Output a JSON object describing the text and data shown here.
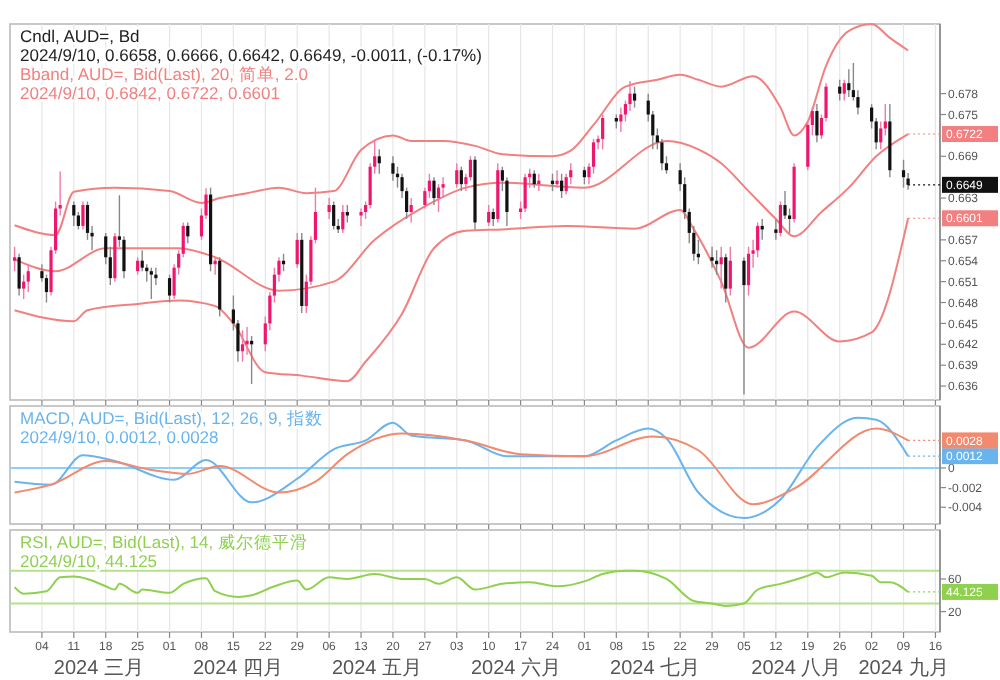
{
  "chart_data": [
    {
      "type": "candlestick",
      "title": "Cndl, AUD=, Bd",
      "subtitle": "2024/9/10, 0.6658, 0.6666, 0.6642, 0.6649, -0.0011, (-0.17%)",
      "annotations": [
        "Bband, AUD=, Bid(Last), 20, 简单, 2.0",
        "2024/9/10, 0.6842, 0.6722, 0.6601"
      ],
      "xlim": [
        "2024-02-26",
        "2024-09-17"
      ],
      "xticks": [
        {
          "value": "2024-03-04",
          "label": null
        },
        {
          "value": "2024-03-11",
          "label": null
        },
        {
          "value": "2024-03-18",
          "label": null
        },
        {
          "value": "2024-03-25",
          "label": null
        },
        {
          "value": "2024-04-01",
          "label": null
        },
        {
          "value": "2024-04-08",
          "label": null
        },
        {
          "value": "2024-04-15",
          "label": null
        },
        {
          "value": "2024-04-22",
          "label": null
        },
        {
          "value": "2024-04-29",
          "label": null
        },
        {
          "value": "2024-05-06",
          "label": null
        },
        {
          "value": "2024-05-13",
          "label": null
        },
        {
          "value": "2024-05-20",
          "label": null
        },
        {
          "value": "2024-05-27",
          "label": null
        },
        {
          "value": "2024-06-03",
          "label": null
        },
        {
          "value": "2024-06-10",
          "label": null
        },
        {
          "value": "2024-06-17",
          "label": null
        },
        {
          "value": "2024-06-24",
          "label": null
        },
        {
          "value": "2024-07-01",
          "label": null
        },
        {
          "value": "2024-07-08",
          "label": null
        },
        {
          "value": "2024-07-15",
          "label": null
        },
        {
          "value": "2024-07-22",
          "label": null
        },
        {
          "value": "2024-07-29",
          "label": null
        },
        {
          "value": "2024-08-05",
          "label": null
        },
        {
          "value": "2024-08-12",
          "label": null
        },
        {
          "value": "2024-08-19",
          "label": null
        },
        {
          "value": "2024-08-26",
          "label": null
        },
        {
          "value": "2024-09-02",
          "label": null
        },
        {
          "value": "2024-09-09",
          "label": null
        },
        {
          "value": "2024-09-16",
          "label": null
        }
      ],
      "ylim": [
        0.634,
        0.688
      ],
      "yticks": [
        0.636,
        0.639,
        0.642,
        0.645,
        0.648,
        0.651,
        0.654,
        0.657,
        0.663,
        0.669,
        0.675,
        0.678
      ],
      "grid": "x",
      "tick_labels": "y",
      "x": [
        "2024-02-27",
        "2024-02-28",
        "2024-02-29",
        "2024-03-01",
        "2024-03-04",
        "2024-03-05",
        "2024-03-06",
        "2024-03-07",
        "2024-03-08",
        "2024-03-11",
        "2024-03-12",
        "2024-03-13",
        "2024-03-14",
        "2024-03-15",
        "2024-03-18",
        "2024-03-19",
        "2024-03-20",
        "2024-03-21",
        "2024-03-22",
        "2024-03-25",
        "2024-03-26",
        "2024-03-27",
        "2024-03-28",
        "2024-03-29",
        "2024-04-01",
        "2024-04-02",
        "2024-04-03",
        "2024-04-04",
        "2024-04-05",
        "2024-04-08",
        "2024-04-09",
        "2024-04-10",
        "2024-04-11",
        "2024-04-12",
        "2024-04-15",
        "2024-04-16",
        "2024-04-17",
        "2024-04-18",
        "2024-04-19",
        "2024-04-22",
        "2024-04-23",
        "2024-04-24",
        "2024-04-25",
        "2024-04-26",
        "2024-04-29",
        "2024-04-30",
        "2024-05-01",
        "2024-05-02",
        "2024-05-03",
        "2024-05-06",
        "2024-05-07",
        "2024-05-08",
        "2024-05-09",
        "2024-05-10",
        "2024-05-13",
        "2024-05-14",
        "2024-05-15",
        "2024-05-16",
        "2024-05-17",
        "2024-05-20",
        "2024-05-21",
        "2024-05-22",
        "2024-05-23",
        "2024-05-24",
        "2024-05-27",
        "2024-05-28",
        "2024-05-29",
        "2024-05-30",
        "2024-05-31",
        "2024-06-03",
        "2024-06-04",
        "2024-06-05",
        "2024-06-06",
        "2024-06-07",
        "2024-06-10",
        "2024-06-11",
        "2024-06-12",
        "2024-06-13",
        "2024-06-14",
        "2024-06-17",
        "2024-06-18",
        "2024-06-19",
        "2024-06-20",
        "2024-06-21",
        "2024-06-24",
        "2024-06-25",
        "2024-06-26",
        "2024-06-27",
        "2024-06-28",
        "2024-07-01",
        "2024-07-02",
        "2024-07-03",
        "2024-07-04",
        "2024-07-05",
        "2024-07-08",
        "2024-07-09",
        "2024-07-10",
        "2024-07-11",
        "2024-07-12",
        "2024-07-15",
        "2024-07-16",
        "2024-07-17",
        "2024-07-18",
        "2024-07-19",
        "2024-07-22",
        "2024-07-23",
        "2024-07-24",
        "2024-07-25",
        "2024-07-26",
        "2024-07-29",
        "2024-07-30",
        "2024-07-31",
        "2024-08-01",
        "2024-08-02",
        "2024-08-05",
        "2024-08-06",
        "2024-08-07",
        "2024-08-08",
        "2024-08-09",
        "2024-08-12",
        "2024-08-13",
        "2024-08-14",
        "2024-08-15",
        "2024-08-16",
        "2024-08-19",
        "2024-08-20",
        "2024-08-21",
        "2024-08-22",
        "2024-08-23",
        "2024-08-26",
        "2024-08-27",
        "2024-08-28",
        "2024-08-29",
        "2024-08-30",
        "2024-09-02",
        "2024-09-03",
        "2024-09-04",
        "2024-09-05",
        "2024-09-06",
        "2024-09-09",
        "2024-09-10"
      ],
      "ohlc": [
        [
          0.654,
          0.656,
          0.6525,
          0.6545
        ],
        [
          0.6545,
          0.655,
          0.649,
          0.65
        ],
        [
          0.65,
          0.652,
          0.6485,
          0.651
        ],
        [
          0.651,
          0.6535,
          0.6495,
          0.6525
        ],
        [
          0.6525,
          0.6535,
          0.651,
          0.6515
        ],
        [
          0.6515,
          0.652,
          0.648,
          0.6495
        ],
        [
          0.6495,
          0.656,
          0.649,
          0.6555
        ],
        [
          0.6555,
          0.6625,
          0.655,
          0.6615
        ],
        [
          0.6615,
          0.6668,
          0.6605,
          0.662
        ],
        [
          0.662,
          0.6625,
          0.659,
          0.6605
        ],
        [
          0.6605,
          0.661,
          0.6585,
          0.659
        ],
        [
          0.659,
          0.6625,
          0.6585,
          0.662
        ],
        [
          0.662,
          0.6625,
          0.657,
          0.658
        ],
        [
          0.658,
          0.659,
          0.6555,
          0.6575
        ],
        [
          0.6575,
          0.658,
          0.6535,
          0.6545
        ],
        [
          0.6545,
          0.656,
          0.6505,
          0.6515
        ],
        [
          0.6515,
          0.658,
          0.651,
          0.6575
        ],
        [
          0.6575,
          0.6634,
          0.656,
          0.657
        ],
        [
          0.657,
          0.6575,
          0.6515,
          0.6525
        ],
        [
          0.6525,
          0.6545,
          0.652,
          0.654
        ],
        [
          0.654,
          0.6555,
          0.6525,
          0.653
        ],
        [
          0.653,
          0.6535,
          0.651,
          0.6525
        ],
        [
          0.6525,
          0.653,
          0.6485,
          0.652
        ],
        [
          0.652,
          0.653,
          0.6505,
          0.6515
        ],
        [
          0.6515,
          0.652,
          0.648,
          0.649
        ],
        [
          0.649,
          0.6535,
          0.6485,
          0.653
        ],
        [
          0.653,
          0.6555,
          0.652,
          0.655
        ],
        [
          0.655,
          0.6595,
          0.6545,
          0.659
        ],
        [
          0.659,
          0.6595,
          0.6565,
          0.6575
        ],
        [
          0.6575,
          0.6615,
          0.657,
          0.6605
        ],
        [
          0.6605,
          0.6644,
          0.66,
          0.6635
        ],
        [
          0.6635,
          0.6645,
          0.6525,
          0.6535
        ],
        [
          0.6535,
          0.6545,
          0.652,
          0.654
        ],
        [
          0.654,
          0.6545,
          0.646,
          0.647
        ],
        [
          0.647,
          0.649,
          0.644,
          0.645
        ],
        [
          0.645,
          0.6455,
          0.6395,
          0.641
        ],
        [
          0.641,
          0.644,
          0.6395,
          0.642
        ],
        [
          0.642,
          0.6445,
          0.6405,
          0.6425
        ],
        [
          0.6425,
          0.6432,
          0.6363,
          0.642
        ],
        [
          0.642,
          0.646,
          0.641,
          0.645
        ],
        [
          0.645,
          0.6495,
          0.644,
          0.649
        ],
        [
          0.649,
          0.653,
          0.648,
          0.652
        ],
        [
          0.652,
          0.6545,
          0.651,
          0.654
        ],
        [
          0.654,
          0.655,
          0.6525,
          0.6535
        ],
        [
          0.6535,
          0.658,
          0.653,
          0.657
        ],
        [
          0.657,
          0.658,
          0.6465,
          0.6475
        ],
        [
          0.6475,
          0.652,
          0.6465,
          0.651
        ],
        [
          0.651,
          0.6575,
          0.6505,
          0.657
        ],
        [
          0.657,
          0.6645,
          0.6565,
          0.661
        ],
        [
          0.661,
          0.663,
          0.66,
          0.662
        ],
        [
          0.662,
          0.6625,
          0.6585,
          0.659
        ],
        [
          0.659,
          0.66,
          0.658,
          0.6585
        ],
        [
          0.6585,
          0.662,
          0.658,
          0.661
        ],
        [
          0.661,
          0.662,
          0.6595,
          0.6605
        ],
        [
          0.6605,
          0.6615,
          0.659,
          0.661
        ],
        [
          0.661,
          0.6625,
          0.66,
          0.662
        ],
        [
          0.662,
          0.668,
          0.6615,
          0.6675
        ],
        [
          0.6675,
          0.6714,
          0.6665,
          0.669
        ],
        [
          0.669,
          0.67,
          0.6665,
          0.668
        ],
        [
          0.668,
          0.669,
          0.6655,
          0.6665
        ],
        [
          0.6665,
          0.6675,
          0.6645,
          0.666
        ],
        [
          0.666,
          0.6665,
          0.663,
          0.664
        ],
        [
          0.664,
          0.6645,
          0.66,
          0.661
        ],
        [
          0.661,
          0.663,
          0.6595,
          0.662
        ],
        [
          0.662,
          0.6645,
          0.6615,
          0.664
        ],
        [
          0.664,
          0.6665,
          0.663,
          0.6655
        ],
        [
          0.6655,
          0.666,
          0.662,
          0.663
        ],
        [
          0.663,
          0.665,
          0.661,
          0.6645
        ],
        [
          0.6645,
          0.666,
          0.663,
          0.665
        ],
        [
          0.665,
          0.668,
          0.6645,
          0.667
        ],
        [
          0.667,
          0.6675,
          0.664,
          0.665
        ],
        [
          0.665,
          0.6665,
          0.664,
          0.666
        ],
        [
          0.666,
          0.669,
          0.6655,
          0.6685
        ],
        [
          0.6685,
          0.669,
          0.6585,
          0.6595
        ],
        [
          0.6595,
          0.662,
          0.659,
          0.661
        ],
        [
          0.661,
          0.6615,
          0.659,
          0.66
        ],
        [
          0.66,
          0.668,
          0.6595,
          0.667
        ],
        [
          0.667,
          0.6675,
          0.664,
          0.6655
        ],
        [
          0.6655,
          0.666,
          0.659,
          0.661
        ],
        [
          0.661,
          0.6625,
          0.66,
          0.6615
        ],
        [
          0.6615,
          0.6665,
          0.661,
          0.666
        ],
        [
          0.666,
          0.6672,
          0.6645,
          0.6665
        ],
        [
          0.6665,
          0.667,
          0.6645,
          0.665
        ],
        [
          0.665,
          0.6665,
          0.664,
          0.6655
        ],
        [
          0.6655,
          0.6665,
          0.664,
          0.665
        ],
        [
          0.665,
          0.667,
          0.6645,
          0.6655
        ],
        [
          0.6655,
          0.6665,
          0.663,
          0.664
        ],
        [
          0.664,
          0.6665,
          0.6635,
          0.666
        ],
        [
          0.666,
          0.668,
          0.665,
          0.667
        ],
        [
          0.667,
          0.6675,
          0.665,
          0.666
        ],
        [
          0.666,
          0.668,
          0.665,
          0.6675
        ],
        [
          0.6675,
          0.6715,
          0.6665,
          0.671
        ],
        [
          0.671,
          0.672,
          0.67,
          0.6715
        ],
        [
          0.6715,
          0.675,
          0.67,
          0.6745
        ],
        [
          0.6745,
          0.675,
          0.673,
          0.674
        ],
        [
          0.674,
          0.676,
          0.6725,
          0.675
        ],
        [
          0.675,
          0.677,
          0.674,
          0.6765
        ],
        [
          0.6765,
          0.6798,
          0.6755,
          0.678
        ],
        [
          0.678,
          0.679,
          0.676,
          0.677
        ],
        [
          0.677,
          0.678,
          0.674,
          0.675
        ],
        [
          0.675,
          0.6755,
          0.67,
          0.672
        ],
        [
          0.672,
          0.673,
          0.67,
          0.671
        ],
        [
          0.671,
          0.6715,
          0.667,
          0.668
        ],
        [
          0.668,
          0.669,
          0.6665,
          0.667
        ],
        [
          0.667,
          0.668,
          0.664,
          0.665
        ],
        [
          0.665,
          0.666,
          0.66,
          0.661
        ],
        [
          0.661,
          0.6615,
          0.6565,
          0.658
        ],
        [
          0.658,
          0.659,
          0.654,
          0.655
        ],
        [
          0.655,
          0.657,
          0.6535,
          0.6545
        ],
        [
          0.6545,
          0.656,
          0.653,
          0.654
        ],
        [
          0.654,
          0.6555,
          0.652,
          0.6535
        ],
        [
          0.6535,
          0.656,
          0.65,
          0.6545
        ],
        [
          0.6545,
          0.655,
          0.648,
          0.65
        ],
        [
          0.65,
          0.656,
          0.649,
          0.654
        ],
        [
          0.654,
          0.6545,
          0.6348,
          0.6505
        ],
        [
          0.6505,
          0.656,
          0.649,
          0.655
        ],
        [
          0.655,
          0.657,
          0.653,
          0.6555
        ],
        [
          0.6555,
          0.6595,
          0.6545,
          0.659
        ],
        [
          0.659,
          0.66,
          0.657,
          0.6585
        ],
        [
          0.6585,
          0.66,
          0.657,
          0.658
        ],
        [
          0.658,
          0.6625,
          0.6575,
          0.662
        ],
        [
          0.662,
          0.664,
          0.66,
          0.6605
        ],
        [
          0.6605,
          0.6615,
          0.658,
          0.66
        ],
        [
          0.66,
          0.668,
          0.6595,
          0.6675
        ],
        [
          0.6675,
          0.674,
          0.667,
          0.6735
        ],
        [
          0.6735,
          0.676,
          0.672,
          0.6755
        ],
        [
          0.6755,
          0.6765,
          0.671,
          0.672
        ],
        [
          0.672,
          0.675,
          0.6715,
          0.6745
        ],
        [
          0.6745,
          0.6795,
          0.674,
          0.679
        ],
        [
          0.679,
          0.68,
          0.677,
          0.678
        ],
        [
          0.678,
          0.68,
          0.677,
          0.6795
        ],
        [
          0.6795,
          0.6815,
          0.6775,
          0.6785
        ],
        [
          0.6785,
          0.6824,
          0.677,
          0.6775
        ],
        [
          0.6775,
          0.6785,
          0.675,
          0.676
        ],
        [
          0.676,
          0.6765,
          0.673,
          0.674
        ],
        [
          0.674,
          0.6745,
          0.67,
          0.671
        ],
        [
          0.671,
          0.674,
          0.67,
          0.673
        ],
        [
          0.673,
          0.6765,
          0.672,
          0.674
        ],
        [
          0.674,
          0.6765,
          0.666,
          0.667
        ],
        [
          0.667,
          0.6685,
          0.6645,
          0.666
        ],
        [
          0.6658,
          0.6666,
          0.6642,
          0.6649
        ]
      ],
      "value_labels": [
        null,
        null,
        null,
        null,
        null,
        null,
        null,
        null,
        null,
        null,
        null,
        null,
        null,
        null,
        null,
        null,
        null,
        null,
        null,
        null,
        null,
        null,
        null,
        null,
        null,
        null,
        null,
        null,
        null,
        null,
        null,
        null,
        null,
        null,
        null,
        null,
        null,
        null,
        null,
        null,
        null,
        null,
        null,
        null,
        null,
        null,
        null,
        null,
        null,
        null,
        null,
        null,
        null,
        null,
        null,
        null,
        null,
        null,
        null,
        null,
        null,
        null,
        null,
        null,
        null,
        null,
        null,
        null,
        null,
        null,
        null,
        null,
        null,
        null,
        null,
        null,
        null,
        null,
        null,
        null,
        null,
        null,
        null,
        null,
        null,
        null,
        null,
        null,
        null,
        null,
        null,
        null,
        null,
        null,
        null,
        null,
        null,
        null,
        null,
        null,
        null,
        null,
        null,
        null,
        null,
        null,
        null,
        null,
        null,
        null,
        null,
        null,
        null,
        null,
        null,
        null,
        null,
        null,
        null,
        null,
        null,
        null,
        null,
        null,
        null,
        null,
        null,
        null,
        null,
        null,
        null,
        null,
        null,
        null,
        null,
        null,
        null,
        null,
        null,
        null,
        "0.6649"
      ],
      "series": [
        {
          "type": "line",
          "color": "#f28080",
          "x": [
            "2024-02-27",
            "2024-03-07",
            "2024-03-11",
            "2024-03-20",
            "2024-04-01",
            "2024-04-08",
            "2024-04-12",
            "2024-04-18",
            "2024-04-25",
            "2024-05-01",
            "2024-05-07",
            "2024-05-13",
            "2024-05-20",
            "2024-05-24",
            "2024-05-31",
            "2024-06-07",
            "2024-06-13",
            "2024-06-24",
            "2024-06-28",
            "2024-07-03",
            "2024-07-10",
            "2024-07-17",
            "2024-07-22",
            "2024-07-26",
            "2024-07-31",
            "2024-08-07",
            "2024-08-13",
            "2024-08-16",
            "2024-08-19",
            "2024-08-23",
            "2024-08-28",
            "2024-09-02",
            "2024-09-06",
            "2024-09-10"
          ],
          "values": [
            0.6591,
            0.6577,
            0.6639,
            0.6645,
            0.664,
            0.6623,
            0.663,
            0.6637,
            0.6645,
            0.6637,
            0.664,
            0.6699,
            0.672,
            0.6712,
            0.6712,
            0.6705,
            0.6693,
            0.669,
            0.6698,
            0.6735,
            0.679,
            0.68,
            0.6807,
            0.68,
            0.679,
            0.6805,
            0.676,
            0.672,
            0.674,
            0.682,
            0.687,
            0.688,
            0.686,
            0.6842
          ]
        },
        {
          "type": "line",
          "color": "#f28080",
          "x": [
            "2024-02-27",
            "2024-03-07",
            "2024-03-18",
            "2024-04-03",
            "2024-04-11",
            "2024-04-25",
            "2024-05-07",
            "2024-05-16",
            "2024-05-27",
            "2024-06-05",
            "2024-06-13",
            "2024-07-01",
            "2024-07-19",
            "2024-07-26",
            "2024-07-31",
            "2024-08-06",
            "2024-08-12",
            "2024-08-16",
            "2024-08-22",
            "2024-08-28",
            "2024-09-03",
            "2024-09-10"
          ],
          "values": [
            0.6542,
            0.6525,
            0.6558,
            0.6558,
            0.6545,
            0.6497,
            0.651,
            0.657,
            0.6618,
            0.6645,
            0.6652,
            0.6645,
            0.6712,
            0.67,
            0.668,
            0.664,
            0.66,
            0.6575,
            0.661,
            0.6645,
            0.669,
            0.6722
          ],
          "value_labels": [
            null,
            null,
            null,
            null,
            null,
            null,
            null,
            null,
            null,
            null,
            null,
            null,
            null,
            null,
            null,
            null,
            null,
            null,
            null,
            null,
            null,
            "0.6722"
          ]
        },
        {
          "type": "line",
          "color": "#f28080",
          "x": [
            "2024-02-27",
            "2024-03-11",
            "2024-03-14",
            "2024-03-25",
            "2024-04-03",
            "2024-04-11",
            "2024-04-15",
            "2024-04-22",
            "2024-04-30",
            "2024-05-10",
            "2024-05-14",
            "2024-05-22",
            "2024-05-29",
            "2024-06-05",
            "2024-06-13",
            "2024-06-27",
            "2024-07-12",
            "2024-07-22",
            "2024-07-25",
            "2024-07-31",
            "2024-08-06",
            "2024-08-16",
            "2024-08-26",
            "2024-09-02",
            "2024-09-10"
          ],
          "values": [
            0.6469,
            0.6453,
            0.6469,
            0.6478,
            0.6483,
            0.6475,
            0.645,
            0.638,
            0.6375,
            0.6367,
            0.6395,
            0.6464,
            0.6558,
            0.6583,
            0.6585,
            0.659,
            0.6586,
            0.6613,
            0.6585,
            0.651,
            0.6415,
            0.6467,
            0.6424,
            0.6437,
            0.6601
          ],
          "value_labels": [
            null,
            null,
            null,
            null,
            null,
            null,
            null,
            null,
            null,
            null,
            null,
            null,
            null,
            null,
            null,
            null,
            null,
            null,
            null,
            null,
            null,
            null,
            null,
            null,
            "0.6601"
          ]
        }
      ]
    },
    {
      "type": "line",
      "title": "MACD, AUD=, Bid(Last), 12, 26, 9, 指数",
      "subtitle": "2024/9/10, 0.0012, 0.0028",
      "xlim": [
        "2024-02-26",
        "2024-09-17"
      ],
      "xticks": [
        {
          "value": "2024-03-04",
          "label": null
        },
        {
          "value": "2024-03-11",
          "label": null
        },
        {
          "value": "2024-03-18",
          "label": null
        },
        {
          "value": "2024-03-25",
          "label": null
        },
        {
          "value": "2024-04-01",
          "label": null
        },
        {
          "value": "2024-04-08",
          "label": null
        },
        {
          "value": "2024-04-15",
          "label": null
        },
        {
          "value": "2024-04-22",
          "label": null
        },
        {
          "value": "2024-04-29",
          "label": null
        },
        {
          "value": "2024-05-06",
          "label": null
        },
        {
          "value": "2024-05-13",
          "label": null
        },
        {
          "value": "2024-05-20",
          "label": null
        },
        {
          "value": "2024-05-27",
          "label": null
        },
        {
          "value": "2024-06-03",
          "label": null
        },
        {
          "value": "2024-06-10",
          "label": null
        },
        {
          "value": "2024-06-17",
          "label": null
        },
        {
          "value": "2024-06-24",
          "label": null
        },
        {
          "value": "2024-07-01",
          "label": null
        },
        {
          "value": "2024-07-08",
          "label": null
        },
        {
          "value": "2024-07-15",
          "label": null
        },
        {
          "value": "2024-07-22",
          "label": null
        },
        {
          "value": "2024-07-29",
          "label": null
        },
        {
          "value": "2024-08-05",
          "label": null
        },
        {
          "value": "2024-08-12",
          "label": null
        },
        {
          "value": "2024-08-19",
          "label": null
        },
        {
          "value": "2024-08-26",
          "label": null
        },
        {
          "value": "2024-09-02",
          "label": null
        },
        {
          "value": "2024-09-09",
          "label": null
        },
        {
          "value": "2024-09-16",
          "label": null
        }
      ],
      "ylim": [
        -0.0057,
        0.0063
      ],
      "yticks": [
        -0.004,
        -0.002,
        0
      ],
      "grid": "x",
      "tick_labels": "y",
      "ref_lines": [
        {
          "axis": "y",
          "value": 0,
          "color": "#8fd0f5"
        }
      ],
      "series": [
        {
          "color": "#6ab4ee",
          "x": [
            "2024-02-27",
            "2024-03-06",
            "2024-03-13",
            "2024-03-20",
            "2024-04-02",
            "2024-04-09",
            "2024-04-19",
            "2024-04-29",
            "2024-05-07",
            "2024-05-14",
            "2024-05-20",
            "2024-05-24",
            "2024-06-05",
            "2024-06-14",
            "2024-06-24",
            "2024-07-01",
            "2024-07-08",
            "2024-07-15",
            "2024-07-19",
            "2024-07-26",
            "2024-08-05",
            "2024-08-13",
            "2024-08-21",
            "2024-08-30",
            "2024-09-03",
            "2024-09-10"
          ],
          "values": [
            -0.0014,
            -0.0017,
            0.0013,
            0.0007,
            -0.0012,
            0.0008,
            -0.0035,
            -0.0011,
            0.0019,
            0.0028,
            0.0046,
            0.0033,
            0.0028,
            0.0012,
            0.0012,
            0.0012,
            0.0028,
            0.004,
            0.003,
            -0.0025,
            -0.0051,
            -0.0032,
            0.0021,
            0.0051,
            0.0049,
            0.0012
          ],
          "value_labels": [
            null,
            null,
            null,
            null,
            null,
            null,
            null,
            null,
            null,
            null,
            null,
            null,
            null,
            null,
            null,
            null,
            null,
            null,
            null,
            null,
            null,
            null,
            null,
            null,
            null,
            "0.0012"
          ]
        },
        {
          "color": "#f28a70",
          "x": [
            "2024-02-27",
            "2024-03-06",
            "2024-03-18",
            "2024-03-28",
            "2024-04-05",
            "2024-04-12",
            "2024-04-25",
            "2024-05-03",
            "2024-05-10",
            "2024-05-22",
            "2024-06-05",
            "2024-06-17",
            "2024-07-01",
            "2024-07-16",
            "2024-07-26",
            "2024-08-07",
            "2024-08-16",
            "2024-09-03",
            "2024-09-10"
          ],
          "values": [
            -0.0025,
            -0.0017,
            0.0007,
            -0.0002,
            -0.0006,
            0.0002,
            -0.0025,
            -0.0014,
            0.0014,
            0.0035,
            0.0028,
            0.0014,
            0.0012,
            0.0032,
            0.0018,
            -0.0037,
            -0.0021,
            0.004,
            0.0028
          ],
          "value_labels": [
            null,
            null,
            null,
            null,
            null,
            null,
            null,
            null,
            null,
            null,
            null,
            null,
            null,
            null,
            null,
            null,
            null,
            null,
            "0.0028"
          ]
        }
      ]
    },
    {
      "type": "line",
      "title": "RSI, AUD=, Bid(Last), 14, 威尔德平滑",
      "subtitle": "2024/9/10, 44.125",
      "annotations": [
        "2024 三月",
        "2024 四月",
        "2024 五月",
        "2024 六月",
        "2024 七月",
        "2024 八月",
        "2024 九月"
      ],
      "xlim": [
        "2024-02-26",
        "2024-09-17"
      ],
      "xticks": [
        {
          "value": "2024-03-04",
          "label": "04"
        },
        {
          "value": "2024-03-11",
          "label": "11"
        },
        {
          "value": "2024-03-18",
          "label": "18"
        },
        {
          "value": "2024-03-25",
          "label": "25"
        },
        {
          "value": "2024-04-01",
          "label": "01"
        },
        {
          "value": "2024-04-08",
          "label": "08"
        },
        {
          "value": "2024-04-15",
          "label": "15"
        },
        {
          "value": "2024-04-22",
          "label": "22"
        },
        {
          "value": "2024-04-29",
          "label": "29"
        },
        {
          "value": "2024-05-06",
          "label": "06"
        },
        {
          "value": "2024-05-13",
          "label": "13"
        },
        {
          "value": "2024-05-20",
          "label": "20"
        },
        {
          "value": "2024-05-27",
          "label": "27"
        },
        {
          "value": "2024-06-03",
          "label": "03"
        },
        {
          "value": "2024-06-10",
          "label": "10"
        },
        {
          "value": "2024-06-17",
          "label": "17"
        },
        {
          "value": "2024-06-24",
          "label": "24"
        },
        {
          "value": "2024-07-01",
          "label": "01"
        },
        {
          "value": "2024-07-08",
          "label": "08"
        },
        {
          "value": "2024-07-15",
          "label": "15"
        },
        {
          "value": "2024-07-22",
          "label": "22"
        },
        {
          "value": "2024-07-29",
          "label": "29"
        },
        {
          "value": "2024-08-05",
          "label": "05"
        },
        {
          "value": "2024-08-12",
          "label": "12"
        },
        {
          "value": "2024-08-19",
          "label": "19"
        },
        {
          "value": "2024-08-26",
          "label": "26"
        },
        {
          "value": "2024-09-02",
          "label": "02"
        },
        {
          "value": "2024-09-09",
          "label": "09"
        },
        {
          "value": "2024-09-16",
          "label": "16"
        }
      ],
      "ylim": [
        -5,
        120
      ],
      "yticks": [
        20,
        60
      ],
      "grid": "x",
      "ref_lines": [
        {
          "axis": "y",
          "value": 70,
          "color": "#b5e08a"
        },
        {
          "axis": "y",
          "value": 30,
          "color": "#b5e08a"
        }
      ],
      "series": [
        {
          "color": "#8fd14f",
          "x": [
            "2024-02-27",
            "2024-02-29",
            "2024-03-05",
            "2024-03-08",
            "2024-03-11",
            "2024-03-14",
            "2024-03-18",
            "2024-03-20",
            "2024-03-21",
            "2024-03-25",
            "2024-03-26",
            "2024-04-01",
            "2024-04-04",
            "2024-04-09",
            "2024-04-11",
            "2024-04-16",
            "2024-04-19",
            "2024-04-24",
            "2024-04-29",
            "2024-05-01",
            "2024-05-06",
            "2024-05-10",
            "2024-05-16",
            "2024-05-22",
            "2024-05-27",
            "2024-05-30",
            "2024-06-03",
            "2024-06-07",
            "2024-06-13",
            "2024-06-19",
            "2024-06-25",
            "2024-07-01",
            "2024-07-05",
            "2024-07-10",
            "2024-07-12",
            "2024-07-19",
            "2024-07-25",
            "2024-07-29",
            "2024-08-01",
            "2024-08-05",
            "2024-08-08",
            "2024-08-13",
            "2024-08-19",
            "2024-08-21",
            "2024-08-23",
            "2024-08-27",
            "2024-09-02",
            "2024-09-04",
            "2024-09-06",
            "2024-09-10"
          ],
          "values": [
            50,
            42,
            45,
            62,
            63,
            60,
            51,
            47,
            54,
            43,
            47,
            43,
            54,
            61,
            45,
            38,
            40,
            51,
            58,
            47,
            62,
            60,
            66,
            60,
            60,
            54,
            62,
            47,
            54,
            56,
            51,
            57,
            66,
            70,
            70,
            60,
            33,
            30,
            27,
            30,
            47,
            54,
            64,
            68,
            62,
            68,
            64,
            56,
            56,
            44.125
          ],
          "value_labels": [
            null,
            null,
            null,
            null,
            null,
            null,
            null,
            null,
            null,
            null,
            null,
            null,
            null,
            null,
            null,
            null,
            null,
            null,
            null,
            null,
            null,
            null,
            null,
            null,
            null,
            null,
            null,
            null,
            null,
            null,
            null,
            null,
            null,
            null,
            null,
            null,
            null,
            null,
            null,
            null,
            null,
            null,
            null,
            null,
            null,
            null,
            null,
            null,
            null,
            "44.125"
          ]
        }
      ]
    }
  ]
}
